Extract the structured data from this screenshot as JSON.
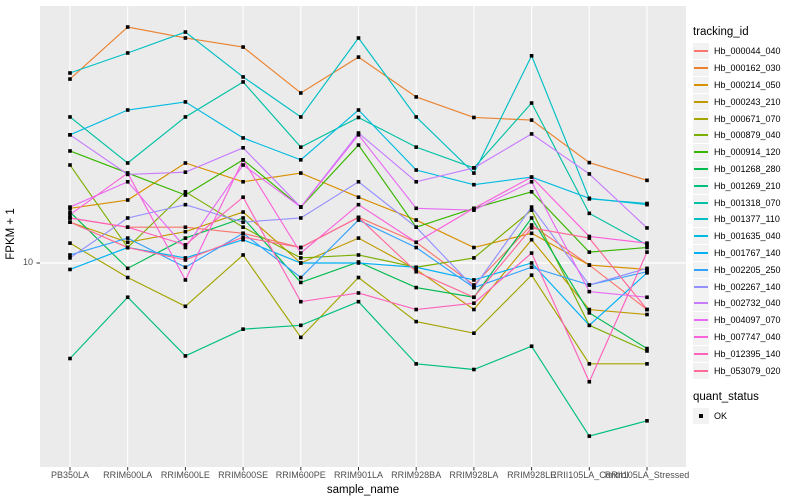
{
  "figure": {
    "background": "#FFFFFF",
    "panel_background": "#EBEBEB",
    "gridline_color": "#FFFFFF",
    "tick_color": "#333333",
    "tick_label_color": "#4D4D4D"
  },
  "legend": {
    "tracking_title": "tracking_id",
    "quant_title": "quant_status",
    "quant_items": [
      {
        "label": "OK",
        "shape": "filled-square",
        "color": "#000000"
      }
    ]
  },
  "chart_data": {
    "type": "line",
    "title": "",
    "xlabel": "sample_name",
    "ylabel": "FPKM + 1",
    "y_scale": "log10",
    "ylim": [
      1.7,
      110
    ],
    "y_ticks": [
      {
        "value": 10,
        "label": "10"
      }
    ],
    "grid": true,
    "legend_position": "right",
    "point_shape": "filled-square",
    "point_color": "#000000",
    "categories": [
      "PB350LA",
      "RRIM600LA",
      "RRIM600LE",
      "RRIM600SE",
      "RRIM600PE",
      "RRIM901LA",
      "RRIM928BA",
      "RRIM928LA",
      "RRIM928LE",
      "RRII105LA_Control",
      "RRII105LA_Stressed"
    ],
    "series": [
      {
        "name": "Hb_000044_040",
        "color": "#F8766D",
        "values": [
          15.4,
          14.1,
          14.1,
          13.3,
          11.6,
          15.5,
          12.2,
          8.1,
          14.4,
          9.8,
          6.4
        ]
      },
      {
        "name": "Hb_000162_030",
        "color": "#EA8331",
        "values": [
          58.4,
          96.2,
          86.6,
          79.4,
          51.1,
          72.1,
          49.2,
          40.4,
          39.4,
          26.2,
          22.1
        ]
      },
      {
        "name": "Hb_000214_050",
        "color": "#D89000",
        "values": [
          16.9,
          18.3,
          26.1,
          21.8,
          23.7,
          18.8,
          15.1,
          11.6,
          13.3,
          9.8,
          9.4
        ]
      },
      {
        "name": "Hb_000243_210",
        "color": "#C09B00",
        "values": [
          14.8,
          12.2,
          13.5,
          16.3,
          10.0,
          12.7,
          9.4,
          6.4,
          12.5,
          6.4,
          6.1
        ]
      },
      {
        "name": "Hb_000671_070",
        "color": "#A3A500",
        "values": [
          12.1,
          8.7,
          6.6,
          10.8,
          4.9,
          8.7,
          5.7,
          5.1,
          8.9,
          3.8,
          3.8
        ]
      },
      {
        "name": "Hb_000879_040",
        "color": "#7CAE00",
        "values": [
          25.6,
          11.6,
          19.8,
          14.1,
          10.5,
          10.8,
          9.6,
          10.5,
          16.6,
          5.5,
          4.3
        ]
      },
      {
        "name": "Hb_000914_120",
        "color": "#39B600",
        "values": [
          29.3,
          23.7,
          19.2,
          26.9,
          17.1,
          31.0,
          14.1,
          16.9,
          19.8,
          11.1,
          11.6
        ]
      },
      {
        "name": "Hb_001268_280",
        "color": "#00BB4E",
        "values": [
          16.3,
          9.5,
          12.7,
          15.4,
          8.3,
          10.1,
          7.9,
          7.2,
          15.4,
          6.2,
          4.4
        ]
      },
      {
        "name": "Hb_001269_210",
        "color": "#00BF7D",
        "values": [
          4.0,
          7.2,
          4.1,
          5.3,
          5.5,
          6.9,
          3.8,
          3.6,
          4.5,
          1.9,
          2.2
        ]
      },
      {
        "name": "Hb_001318_070",
        "color": "#00C1A3",
        "values": [
          40.6,
          26.1,
          40.6,
          56.8,
          30.4,
          40.4,
          30.4,
          24.9,
          46.4,
          16.1,
          11.9
        ]
      },
      {
        "name": "Hb_001377_110",
        "color": "#00BFC4",
        "values": [
          61.9,
          75.0,
          91.7,
          59.6,
          40.6,
          86.6,
          40.6,
          23.7,
          73.0,
          18.5,
          17.7
        ]
      },
      {
        "name": "Hb_001635_040",
        "color": "#00BAE0",
        "values": [
          34.2,
          43.4,
          46.9,
          33.2,
          26.9,
          43.4,
          24.4,
          21.2,
          22.8,
          18.6,
          17.5
        ]
      },
      {
        "name": "Hb_001767_140",
        "color": "#00B0F6",
        "values": [
          9.4,
          11.6,
          10.5,
          12.5,
          10.0,
          10.0,
          9.6,
          8.5,
          10.0,
          5.5,
          9.1
        ]
      },
      {
        "name": "Hb_002205_250",
        "color": "#35A2FF",
        "values": [
          10.8,
          12.7,
          9.6,
          13.3,
          8.7,
          15.1,
          11.6,
          7.9,
          9.6,
          8.1,
          9.2
        ]
      },
      {
        "name": "Hb_002267_140",
        "color": "#9590FF",
        "values": [
          10.5,
          15.4,
          17.5,
          14.8,
          15.4,
          21.8,
          14.1,
          7.9,
          17.1,
          8.1,
          9.5
        ]
      },
      {
        "name": "Hb_002732_040",
        "color": "#C77CFF",
        "values": [
          34.2,
          23.4,
          23.9,
          30.2,
          17.1,
          34.8,
          21.8,
          24.9,
          34.5,
          23.5,
          14.0
        ]
      },
      {
        "name": "Hb_004097_070",
        "color": "#E76BF3",
        "values": [
          17.1,
          21.8,
          11.6,
          25.6,
          17.1,
          34.2,
          16.9,
          16.6,
          21.8,
          7.6,
          7.2
        ]
      },
      {
        "name": "Hb_007747_040",
        "color": "#FA62DB",
        "values": [
          15.9,
          23.7,
          8.5,
          26.9,
          11.0,
          17.5,
          12.2,
          16.9,
          22.8,
          12.9,
          12.1
        ]
      },
      {
        "name": "Hb_012395_140",
        "color": "#FF62BC",
        "values": [
          15.4,
          14.1,
          11.9,
          18.8,
          6.9,
          7.5,
          6.4,
          6.8,
          11.0,
          3.2,
          11.1
        ]
      },
      {
        "name": "Hb_053079_020",
        "color": "#FF6A98",
        "values": [
          14.8,
          11.6,
          10.3,
          12.8,
          11.6,
          15.5,
          9.2,
          7.2,
          14.0,
          12.7,
          6.4
        ]
      }
    ]
  }
}
